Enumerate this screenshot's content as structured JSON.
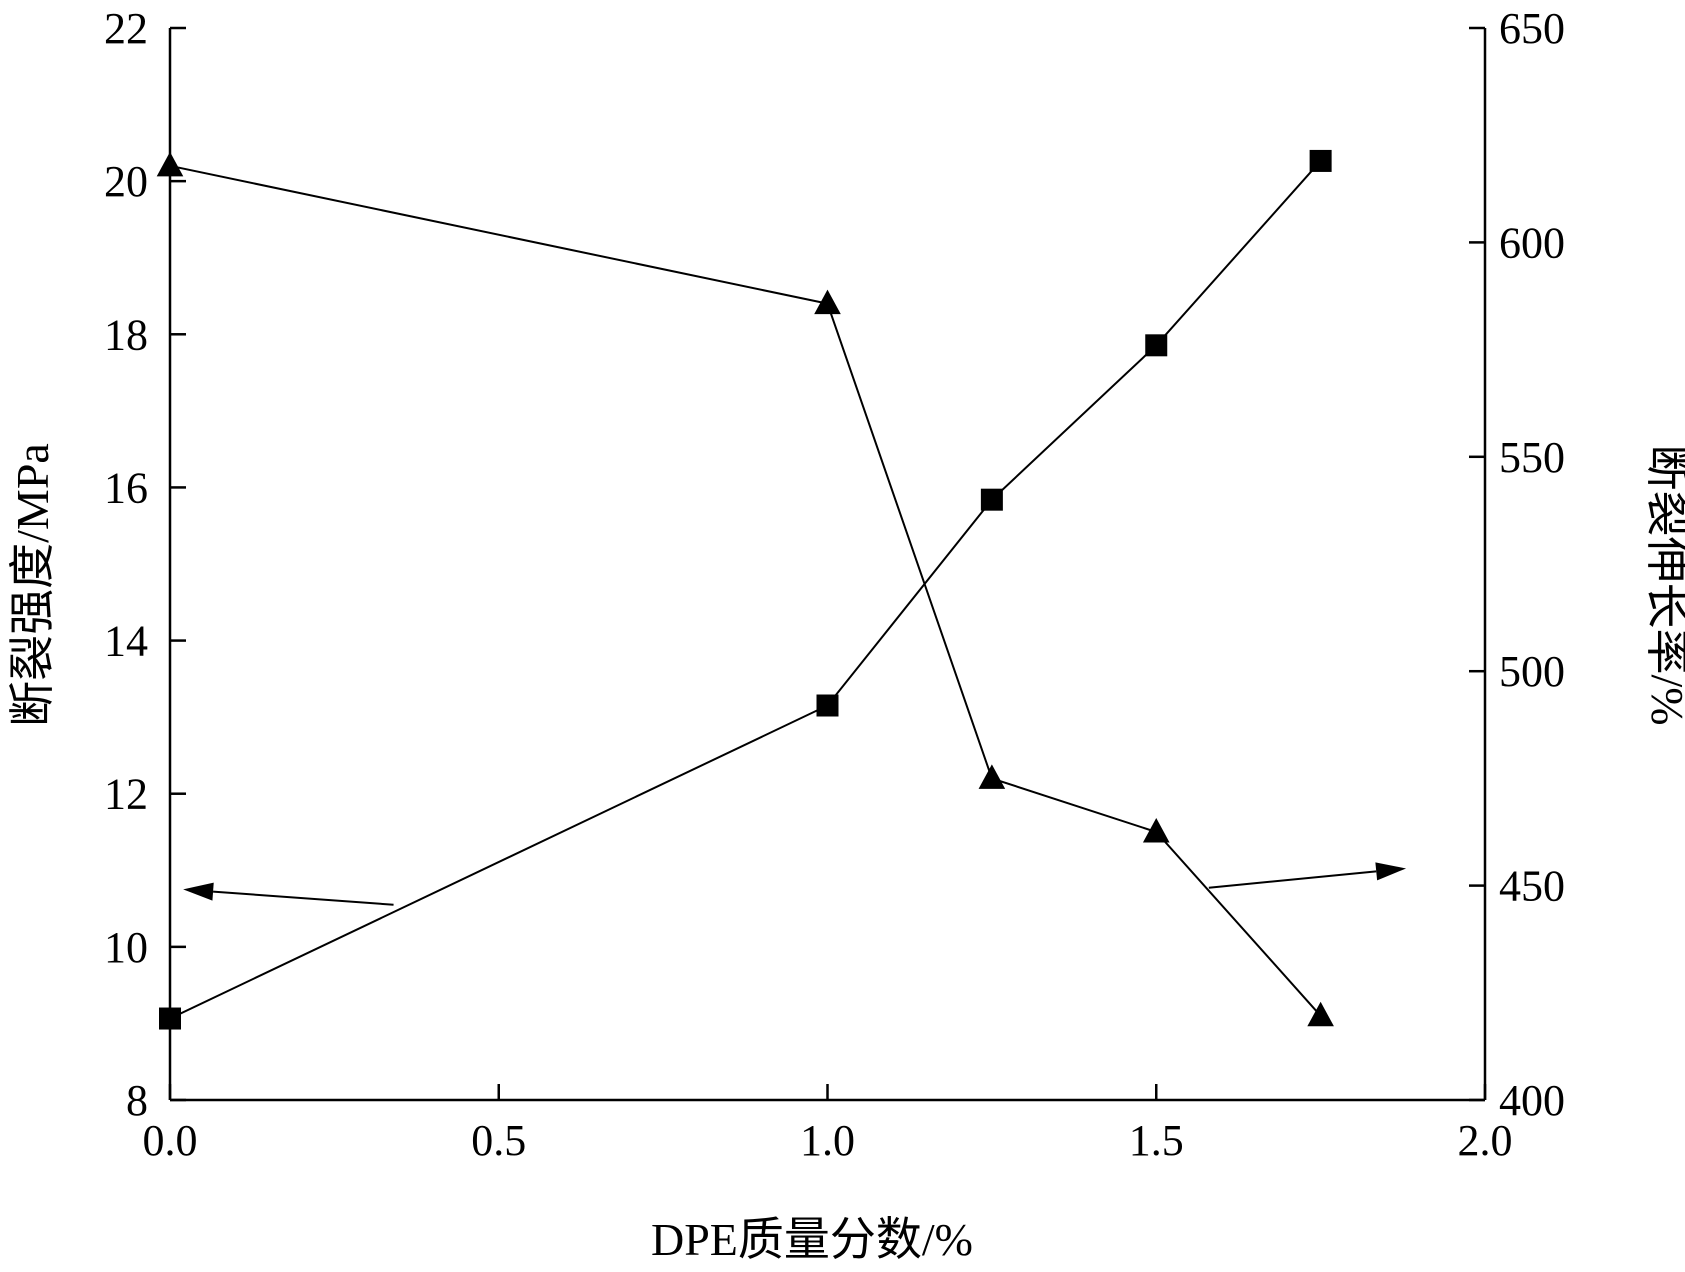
{
  "chart_data": {
    "type": "line",
    "xlabel": "DPE质量分数/%",
    "ylabel_left": "断裂强度/MPa",
    "ylabel_right": "断裂伸长率/%",
    "xlim": [
      0,
      2.0
    ],
    "ylim_left": [
      8,
      22
    ],
    "ylim_right": [
      400,
      650
    ],
    "x_ticks": [
      "0.0",
      "0.5",
      "1.0",
      "1.5",
      "2.0"
    ],
    "y_left_ticks": [
      "8",
      "10",
      "12",
      "14",
      "16",
      "18",
      "20",
      "22"
    ],
    "y_right_ticks": [
      "400",
      "450",
      "500",
      "550",
      "600",
      "650"
    ],
    "x_tick_values": [
      0,
      0.5,
      1.0,
      1.5,
      2.0
    ],
    "y_left_tick_values": [
      8,
      10,
      12,
      14,
      16,
      18,
      20,
      22
    ],
    "y_right_tick_values": [
      400,
      450,
      500,
      550,
      600,
      650
    ],
    "grid": false,
    "series": [
      {
        "axis": "left",
        "marker": "triangle",
        "color": "#000000",
        "x": [
          0,
          1.0,
          1.25,
          1.5,
          1.75
        ],
        "values": [
          20.2,
          18.4,
          12.2,
          11.5,
          9.1
        ]
      },
      {
        "axis": "right",
        "marker": "square",
        "color": "#000000",
        "x": [
          0,
          1.0,
          1.25,
          1.5,
          1.75
        ],
        "values": [
          419,
          492,
          540,
          576,
          619
        ]
      }
    ],
    "arrows": [
      {
        "points_to": "left",
        "from": [
          0.34,
          10.55
        ],
        "to": [
          0.02,
          10.75
        ]
      },
      {
        "points_to": "right",
        "from": [
          1.58,
          449.5
        ],
        "to": [
          1.88,
          454
        ]
      }
    ]
  }
}
